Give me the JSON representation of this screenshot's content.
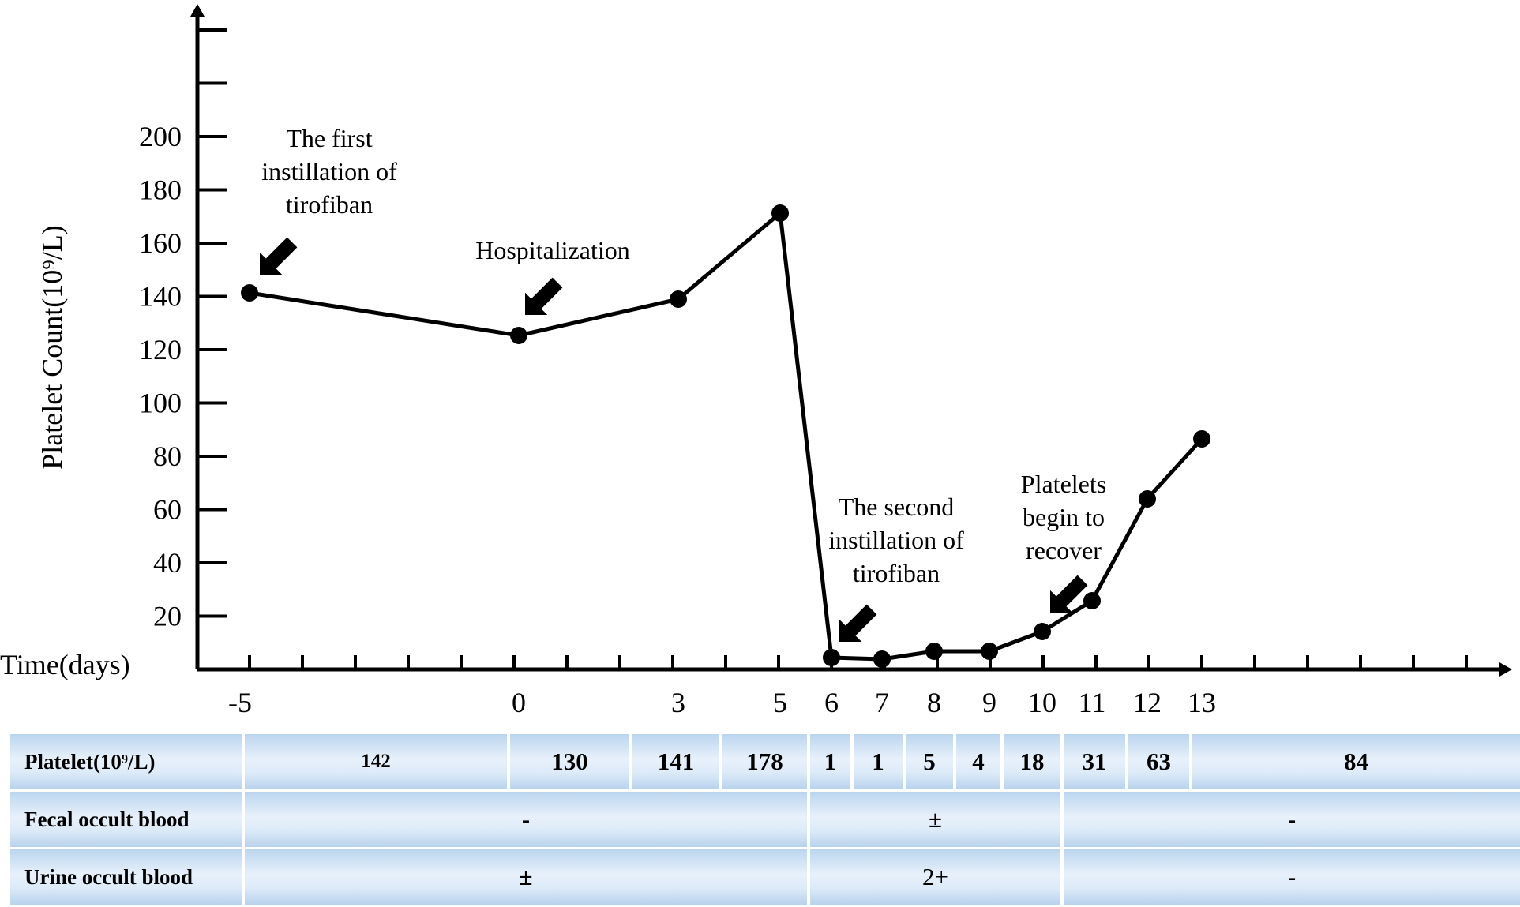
{
  "chart_data": {
    "type": "line",
    "ylabel": "Platelet Count(10⁹/L)",
    "xlabel": "Time(days)",
    "ylim": [
      0,
      240
    ],
    "yticks": [
      20,
      40,
      60,
      80,
      100,
      120,
      140,
      160,
      180,
      200
    ],
    "x_tick_labels": [
      "-5",
      "0",
      "3",
      "5",
      "6",
      "7",
      "8",
      "9",
      "10",
      "11",
      "12",
      "13"
    ],
    "series": [
      {
        "x": [
          -5,
          0,
          3,
          5,
          6,
          7,
          8,
          9,
          10,
          11,
          12,
          13
        ],
        "values": [
          142,
          130,
          141,
          178,
          1,
          1,
          5,
          4,
          18,
          31,
          63,
          84
        ]
      }
    ],
    "annotations": [
      {
        "lines": [
          "The first",
          "instillation of",
          "tirofiban"
        ],
        "x": -5
      },
      {
        "lines": [
          "Hospitalization"
        ],
        "x": 0
      },
      {
        "lines": [
          "The second",
          "instillation of",
          "tirofiban"
        ],
        "x": 6
      },
      {
        "lines": [
          "Platelets",
          "begin to",
          "recover"
        ],
        "x": 10
      }
    ]
  },
  "table": {
    "rows": [
      {
        "label": "Platelet(10⁹/L)",
        "cells": [
          "142",
          "130",
          "141",
          "178",
          "1",
          "1",
          "5",
          "4",
          "18",
          "31",
          "63",
          "84"
        ]
      },
      {
        "label": "Fecal occult blood",
        "cells": [
          "-",
          "±",
          "-"
        ]
      },
      {
        "label": "Urine occult blood",
        "cells": [
          "±",
          "2+",
          "-"
        ]
      }
    ]
  }
}
